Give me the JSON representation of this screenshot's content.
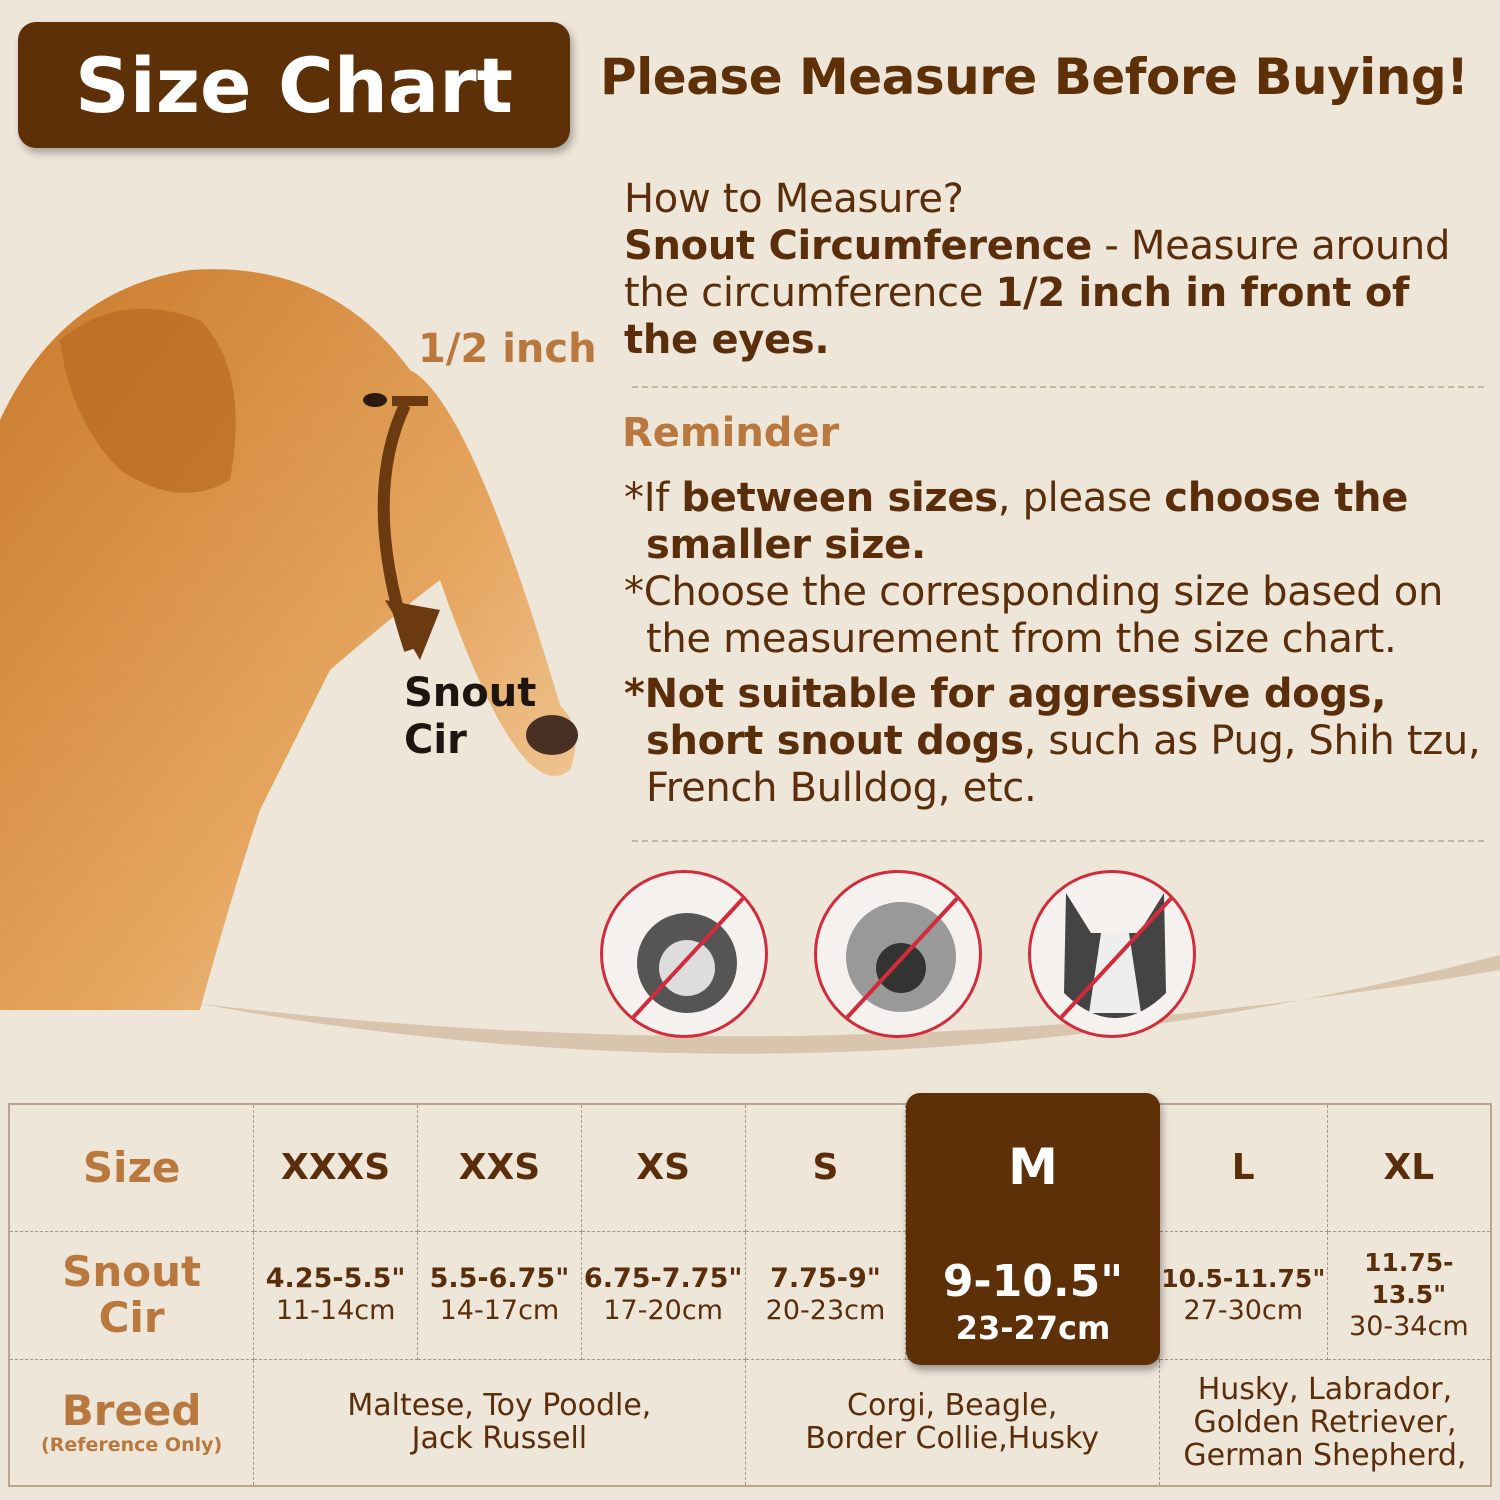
{
  "header": {
    "title": "Size Chart",
    "headline": "Please Measure Before Buying!"
  },
  "diagram": {
    "half_inch_label": "1/2 inch",
    "snout_label_1": "Snout",
    "snout_label_2": "Cir"
  },
  "measure": {
    "question": "How to Measure?",
    "term": "Snout Circumference",
    "text1": " - Measure around the circumference ",
    "bold1": "1/2 inch in front of the eyes."
  },
  "reminder": {
    "title": "Reminder",
    "r1_pre": "*If ",
    "r1_b1": "between sizes",
    "r1_mid": ", please ",
    "r1_b2": "choose the smaller size.",
    "r2": "*Choose the corresponding size based on the measurement from the size chart.",
    "r3_b": "*Not suitable for aggressive dogs, short snout dogs",
    "r3_rest": ", such as Pug, Shih tzu, French Bulldog, etc."
  },
  "not_suitable_icons": [
    "shih-tzu-crossed-icon",
    "pug-crossed-icon",
    "french-bulldog-crossed-icon"
  ],
  "colors": {
    "brown": "#5e3008",
    "accent": "#b8783e",
    "background": "#efe6da",
    "prohibit": "#d22b3a"
  },
  "table": {
    "row_headers": {
      "size": "Size",
      "snout1": "Snout",
      "snout2": "Cir",
      "breed": "Breed",
      "breed_note": "(Reference Only)"
    },
    "sizes": [
      {
        "size": "XXXS",
        "inch": "4.25-5.5\"",
        "cm": "11-14cm"
      },
      {
        "size": "XXS",
        "inch": "5.5-6.75\"",
        "cm": "14-17cm"
      },
      {
        "size": "XS",
        "inch": "6.75-7.75\"",
        "cm": "17-20cm"
      },
      {
        "size": "S",
        "inch": "7.75-9\"",
        "cm": "20-23cm"
      },
      {
        "size": "M",
        "inch": "9-10.5\"",
        "cm": "23-27cm"
      },
      {
        "size": "L",
        "inch": "10.5-11.75\"",
        "cm": "27-30cm"
      },
      {
        "size": "XL",
        "inch": "11.75-13.5\"",
        "cm": "30-34cm"
      }
    ],
    "highlighted": "M",
    "breeds": [
      {
        "l1": "Maltese, Toy Poodle,",
        "l2": "Jack Russell"
      },
      {
        "l1": "Corgi, Beagle,",
        "l2": "Border Collie,Husky"
      },
      {
        "l1": "Husky, Labrador,",
        "l2": "Golden Retriever,",
        "l3": "German Shepherd,"
      }
    ]
  }
}
